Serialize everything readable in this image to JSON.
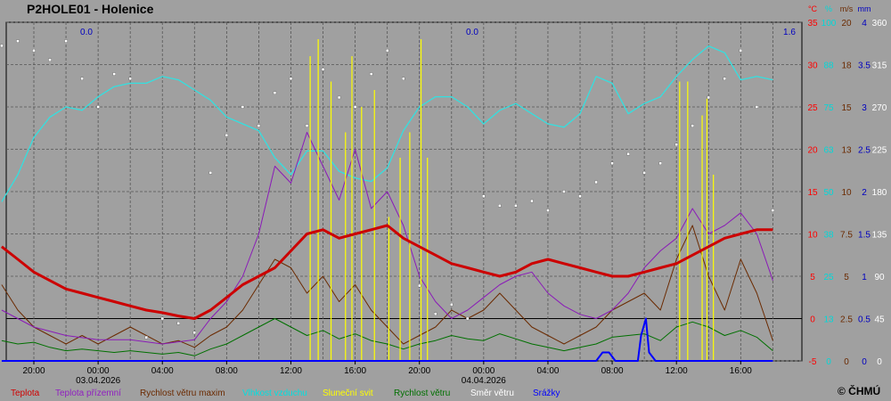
{
  "chart_data": {
    "type": "line",
    "title": "P2HOLE01 - Holenice",
    "copyright": "© ČHMÚ",
    "x_tick_labels": [
      "20:00",
      "00:00",
      "04:00",
      "08:00",
      "12:00",
      "16:00",
      "20:00",
      "00:00",
      "04:00",
      "08:00",
      "12:00",
      "16:00"
    ],
    "date_labels": [
      {
        "at": "00:00",
        "label": "03.04.2026",
        "index": 1
      },
      {
        "at": "00:00",
        "label": "04.04.2026",
        "index": 7
      }
    ],
    "axes": [
      {
        "unit": "°C",
        "color": "#ff0000",
        "ticks": [
          "35",
          "30",
          "25",
          "20",
          "15",
          "10",
          "5",
          "0",
          "-5"
        ],
        "ylim": [
          -5,
          35
        ]
      },
      {
        "unit": "%",
        "color": "#00d8d8",
        "ticks": [
          "100",
          "88",
          "75",
          "63",
          "50",
          "38",
          "25",
          "13",
          "0"
        ],
        "ylim": [
          0,
          100
        ]
      },
      {
        "unit": "m/s",
        "color": "#6b2a00",
        "ticks": [
          "20",
          "18",
          "15",
          "13",
          "10",
          "7.5",
          "5",
          "2.5",
          "0"
        ],
        "ylim": [
          0,
          20
        ]
      },
      {
        "unit": "mm",
        "color": "#0000c0",
        "ticks": [
          "4",
          "3.5",
          "3",
          "2.5",
          "2",
          "1.5",
          "1",
          "0.5",
          "0"
        ],
        "ylim": [
          0,
          4
        ]
      },
      {
        "unit": "",
        "color": "#ffffff",
        "ticks": [
          "360",
          "315",
          "270",
          "225",
          "180",
          "135",
          "90",
          "45",
          "0"
        ],
        "ylim": [
          0,
          360
        ]
      }
    ],
    "daily_precip_labels": [
      {
        "value": "0.0",
        "day": 1
      },
      {
        "value": "0.0",
        "day": 2
      },
      {
        "value": "1.6",
        "day": 3
      }
    ],
    "legend": [
      {
        "label": "Teplota",
        "color": "#d00000"
      },
      {
        "label": "Teplota přízemní",
        "color": "#9020c0"
      },
      {
        "label": "Rychlost větru maxim",
        "color": "#6b2a00"
      },
      {
        "label": "Vlhkost vzduchu",
        "color": "#00e0e0"
      },
      {
        "label": "Sluneční svit",
        "color": "#ffff00"
      },
      {
        "label": "Rychlost větru",
        "color": "#007000"
      },
      {
        "label": "Směr větru",
        "color": "#ffffff"
      },
      {
        "label": "Srážky",
        "color": "#0000ff"
      }
    ],
    "series": [
      {
        "name": "Teplota",
        "color": "#cc0000",
        "unit": "°C",
        "x": [
          18,
          19,
          20,
          21,
          22,
          23,
          24,
          25,
          26,
          27,
          28,
          29,
          30,
          31,
          32,
          33,
          34,
          35,
          36,
          37,
          38,
          39,
          40,
          41,
          42,
          43,
          44,
          45,
          46,
          47,
          48,
          49,
          50,
          51,
          52,
          53,
          54,
          55,
          56,
          57,
          58,
          59,
          60,
          61,
          62,
          63,
          64,
          65,
          66
        ],
        "y": [
          8.5,
          7,
          5.5,
          4.5,
          3.5,
          3,
          2.5,
          2,
          1.5,
          1,
          0.7,
          0.3,
          0,
          1,
          2.5,
          4,
          5,
          6,
          8,
          10,
          10.5,
          9.5,
          10,
          10.5,
          11,
          9.5,
          8.5,
          7.5,
          6.5,
          6,
          5.5,
          5,
          5.5,
          6.5,
          7,
          6.5,
          6,
          5.5,
          5,
          5,
          5.5,
          6,
          6.5,
          7.5,
          8.5,
          9.5,
          10,
          10.5,
          10.5
        ]
      },
      {
        "name": "Teplota přízemní",
        "color": "#8a1ab8",
        "unit": "°C",
        "x": [
          18,
          20,
          22,
          24,
          26,
          28,
          30,
          31,
          32,
          33,
          34,
          35,
          36,
          37,
          38,
          39,
          40,
          41,
          42,
          43,
          44,
          45,
          46,
          47,
          48,
          49,
          50,
          51,
          52,
          53,
          54,
          55,
          56,
          57,
          58,
          59,
          60,
          61,
          62,
          63,
          64,
          65,
          66
        ],
        "y": [
          1,
          -1,
          -2,
          -2.5,
          -2.5,
          -3,
          -2.5,
          0,
          2,
          5,
          10,
          18,
          16,
          22,
          18,
          14,
          20,
          13,
          15,
          11,
          5,
          2,
          0,
          1,
          2.5,
          4,
          5,
          5.5,
          3,
          1.5,
          0.5,
          0,
          1,
          3,
          6,
          8,
          9.5,
          13,
          10,
          11,
          12.5,
          10,
          4.5
        ]
      },
      {
        "name": "Vlhkost vzduchu",
        "color": "#33e0e0",
        "unit": "%",
        "x": [
          18,
          19,
          20,
          21,
          22,
          23,
          24,
          25,
          26,
          27,
          28,
          29,
          30,
          31,
          32,
          33,
          34,
          35,
          36,
          37,
          38,
          39,
          40,
          41,
          42,
          43,
          44,
          45,
          46,
          47,
          48,
          49,
          50,
          51,
          52,
          53,
          54,
          55,
          56,
          57,
          58,
          59,
          60,
          61,
          62,
          63,
          64,
          65,
          66
        ],
        "y": [
          47,
          55,
          66,
          72,
          75,
          74,
          78,
          81,
          82,
          82,
          84,
          83,
          80,
          77,
          72,
          70,
          68,
          60,
          55,
          62,
          62,
          56,
          54,
          53,
          57,
          68,
          75,
          78,
          78,
          75,
          70,
          74,
          76,
          73,
          70,
          69,
          73,
          84,
          82,
          73,
          76,
          78,
          84,
          89,
          93,
          91,
          83,
          84,
          83
        ]
      },
      {
        "name": "Rychlost větru maxim",
        "color": "#6b2a00",
        "unit": "m/s",
        "x": [
          18,
          19,
          20,
          21,
          22,
          23,
          24,
          25,
          26,
          27,
          28,
          29,
          30,
          31,
          32,
          33,
          34,
          35,
          36,
          37,
          38,
          39,
          40,
          41,
          42,
          43,
          44,
          45,
          46,
          47,
          48,
          49,
          50,
          51,
          52,
          53,
          54,
          55,
          56,
          57,
          58,
          59,
          60,
          61,
          62,
          63,
          64,
          65,
          66
        ],
        "y": [
          4.5,
          3,
          2,
          1.5,
          1,
          1.5,
          1,
          1.5,
          2,
          1.5,
          1,
          1.2,
          0.8,
          1.5,
          2,
          3,
          4.5,
          6,
          5.5,
          4,
          5,
          3.5,
          4.5,
          3,
          2,
          1,
          1.5,
          2,
          3,
          2.5,
          3,
          4,
          3,
          2,
          1.5,
          1,
          1.5,
          2,
          3,
          3.5,
          4,
          3,
          6,
          8,
          5,
          3,
          6,
          4,
          1.2
        ]
      },
      {
        "name": "Rychlost větru",
        "color": "#007000",
        "unit": "m/s",
        "x": [
          18,
          19,
          20,
          21,
          22,
          23,
          24,
          25,
          26,
          27,
          28,
          29,
          30,
          31,
          32,
          33,
          34,
          35,
          36,
          37,
          38,
          39,
          40,
          41,
          42,
          43,
          44,
          45,
          46,
          47,
          48,
          49,
          50,
          51,
          52,
          53,
          54,
          55,
          56,
          57,
          58,
          59,
          60,
          61,
          62,
          63,
          64,
          65,
          66
        ],
        "y": [
          1.2,
          1,
          1.1,
          0.8,
          0.6,
          0.7,
          0.6,
          0.5,
          0.6,
          0.5,
          0.4,
          0.5,
          0.3,
          0.7,
          1,
          1.5,
          2,
          2.5,
          2,
          1.5,
          1.8,
          1.3,
          1.6,
          1.2,
          1,
          0.7,
          1,
          1.2,
          1.5,
          1.3,
          1.2,
          1.6,
          1.3,
          1,
          0.8,
          0.6,
          0.8,
          1,
          1.4,
          1.5,
          1.6,
          1.2,
          2,
          2.3,
          2,
          1.5,
          1.8,
          1.4,
          0.6
        ]
      },
      {
        "name": "Sluneční svit",
        "color": "#ffff00",
        "unit": "°C",
        "spikes_x": [
          37.2,
          37.7,
          38.5,
          39.4,
          39.8,
          40.4,
          41.2,
          42.1,
          42.8,
          43.4,
          44.1,
          44.5,
          60.2,
          60.7,
          61.6,
          61.9,
          62.3
        ],
        "spikes_y": [
          31,
          33,
          28,
          22,
          31,
          25,
          27,
          12,
          19,
          22,
          33,
          19,
          28,
          28,
          24,
          26,
          17
        ]
      },
      {
        "name": "Směr větru",
        "color": "#ffffff",
        "unit": "°",
        "x": [
          18,
          19,
          20,
          21,
          22,
          23,
          24,
          25,
          26,
          27,
          28,
          29,
          30,
          31,
          32,
          33,
          34,
          35,
          36,
          37,
          38,
          39,
          40,
          41,
          42,
          43,
          44,
          45,
          46,
          47,
          48,
          49,
          50,
          51,
          52,
          53,
          54,
          55,
          56,
          57,
          58,
          59,
          60,
          61,
          62,
          63,
          64,
          65,
          66
        ],
        "y": [
          335,
          340,
          330,
          320,
          340,
          300,
          270,
          305,
          300,
          25,
          45,
          40,
          30,
          200,
          240,
          270,
          250,
          285,
          300,
          250,
          310,
          280,
          270,
          305,
          330,
          300,
          80,
          50,
          60,
          45,
          175,
          165,
          165,
          170,
          160,
          180,
          175,
          190,
          210,
          220,
          200,
          210,
          230,
          250,
          280,
          300,
          330,
          270,
          160
        ]
      },
      {
        "name": "Srážky",
        "color": "#0000ff",
        "unit": "mm",
        "x": [
          18,
          30,
          47,
          47.3,
          47.6,
          47.9,
          52,
          52.5,
          55,
          55.4,
          55.8,
          56.2,
          57,
          57.6,
          57.8,
          58.1,
          58.3,
          58.7,
          59,
          66
        ],
        "y": [
          0,
          0,
          0,
          0,
          0,
          0,
          0,
          0,
          0,
          0.1,
          0.1,
          0,
          0,
          0,
          0.3,
          0.5,
          0.1,
          0,
          0,
          0
        ]
      }
    ]
  }
}
